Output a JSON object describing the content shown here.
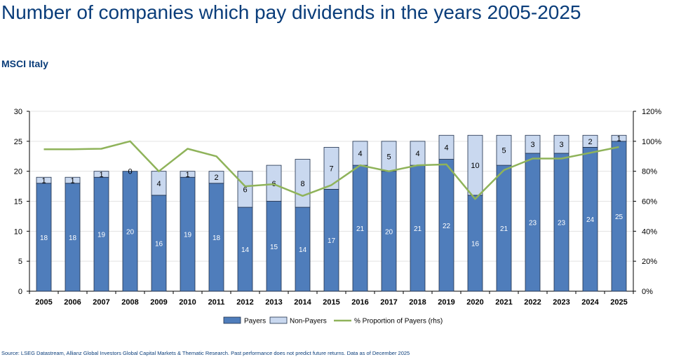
{
  "title": "Number of companies which pay dividends in the years 2005-2025",
  "subtitle": "MSCI Italy",
  "source": "Source: LSEG Datastream, Allianz Global Investors Global Capital Markets & Thematic Research. Past performance does not predict future returns. Data as of December 2025",
  "colors": {
    "payers": "#4f7dbb",
    "non_payers": "#c9d8ef",
    "line": "#8fb35a",
    "title": "#0a3d7a"
  },
  "chart_data": {
    "type": "bar",
    "stacked": true,
    "categories": [
      "2005",
      "2006",
      "2007",
      "2008",
      "2009",
      "2010",
      "2011",
      "2012",
      "2013",
      "2014",
      "2015",
      "2016",
      "2017",
      "2018",
      "2019",
      "2020",
      "2021",
      "2022",
      "2023",
      "2024",
      "2025"
    ],
    "series": [
      {
        "name": "Payers",
        "axis": "left",
        "values": [
          18,
          18,
          19,
          20,
          16,
          19,
          18,
          14,
          15,
          14,
          17,
          21,
          20,
          21,
          22,
          16,
          21,
          23,
          23,
          24,
          25
        ]
      },
      {
        "name": "Non-Payers",
        "axis": "left",
        "values": [
          1,
          1,
          1,
          0,
          4,
          1,
          2,
          6,
          6,
          8,
          7,
          4,
          5,
          4,
          4,
          10,
          5,
          3,
          3,
          2,
          1
        ]
      },
      {
        "name": "% Proportion of Payers (rhs)",
        "axis": "right",
        "type": "line",
        "values": [
          94.7,
          94.7,
          95.0,
          100,
          80.0,
          95.0,
          90.0,
          70.0,
          71.4,
          63.6,
          70.8,
          84.0,
          80.0,
          84.0,
          84.6,
          61.5,
          80.8,
          88.5,
          88.5,
          92.3,
          96.2
        ]
      }
    ],
    "ylim": [
      0,
      30
    ],
    "yticks": [
      "0",
      "5",
      "10",
      "15",
      "20",
      "25",
      "30"
    ],
    "y2lim": [
      0,
      120
    ],
    "y2ticks": [
      "0%",
      "20%",
      "40%",
      "60%",
      "80%",
      "100%",
      "120%"
    ],
    "legend": [
      "Payers",
      "Non-Payers",
      "% Proportion of Payers (rhs)"
    ],
    "legend_position": "bottom"
  }
}
